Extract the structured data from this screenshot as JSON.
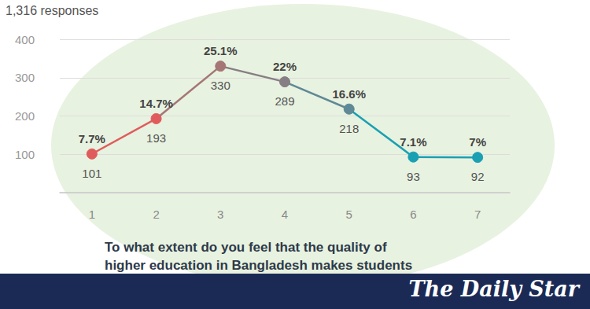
{
  "chart_data": {
    "type": "line",
    "title": "To what extent do you feel that the quality of\nhigher education in Bangladesh makes students",
    "subtitle": "1,316 responses",
    "footer": "The Daily Star",
    "categories": [
      "1",
      "2",
      "3",
      "4",
      "5",
      "6",
      "7"
    ],
    "values": [
      101,
      193,
      330,
      289,
      218,
      93,
      92
    ],
    "annotations": [
      "7.7%",
      "14.7%",
      "25.1%",
      "22%",
      "16.6%",
      "7.1%",
      "7%"
    ],
    "colors": [
      "#e05c5c",
      "#e05c5c",
      "#a57676",
      "#867e84",
      "#5f8996",
      "#1aa0b2",
      "#1aa0b2"
    ],
    "ylim": [
      0,
      400
    ],
    "yticks": [
      100,
      200,
      300,
      400
    ],
    "grid": true,
    "data_labels": true,
    "marker": "circle"
  }
}
